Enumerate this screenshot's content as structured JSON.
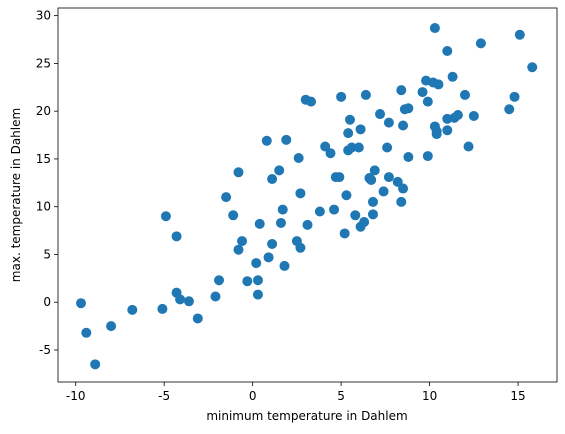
{
  "chart_data": {
    "type": "scatter",
    "xlabel": "minimum temperature in Dahlem",
    "ylabel": "max. temperature in Dahlem",
    "color": "#1f77b4",
    "xlim": [
      -11.0,
      17.2
    ],
    "ylim": [
      -8.35,
      30.8
    ],
    "xticks": [
      -10,
      -5,
      0,
      5,
      10,
      15
    ],
    "yticks": [
      -5,
      0,
      5,
      10,
      15,
      20,
      25,
      30
    ],
    "x": [
      -9.7,
      -9.4,
      -8.9,
      -8.0,
      -6.8,
      -5.1,
      -4.9,
      -4.3,
      -4.3,
      -4.1,
      -3.6,
      -3.1,
      -2.1,
      -1.9,
      -1.5,
      -1.1,
      -0.8,
      -0.8,
      -0.6,
      -0.3,
      0.2,
      0.3,
      0.3,
      0.4,
      0.8,
      0.9,
      1.1,
      1.1,
      1.5,
      1.6,
      1.7,
      1.8,
      1.9,
      2.5,
      2.6,
      2.7,
      2.7,
      3.0,
      3.3,
      3.1,
      3.8,
      4.1,
      4.4,
      4.6,
      4.7,
      4.9,
      5.0,
      5.2,
      5.3,
      5.4,
      5.4,
      5.5,
      5.6,
      5.8,
      6.0,
      6.1,
      6.1,
      6.3,
      6.4,
      6.6,
      6.7,
      6.8,
      6.9,
      6.8,
      7.2,
      7.4,
      7.6,
      7.7,
      7.7,
      8.2,
      8.4,
      8.4,
      8.5,
      8.5,
      8.6,
      8.8,
      8.8,
      9.6,
      9.8,
      9.9,
      9.9,
      10.2,
      10.3,
      10.3,
      10.4,
      10.4,
      10.5,
      11.0,
      11.0,
      11.0,
      11.3,
      11.4,
      11.6,
      12.0,
      12.2,
      12.5,
      12.9,
      14.5,
      14.8,
      15.1,
      15.8
    ],
    "values": [
      -0.1,
      -3.2,
      -6.5,
      -2.5,
      -0.8,
      -0.7,
      9.0,
      6.9,
      1.0,
      0.3,
      0.1,
      -1.7,
      0.6,
      2.3,
      11.0,
      9.1,
      13.6,
      5.5,
      6.4,
      2.2,
      4.1,
      2.3,
      0.8,
      8.2,
      16.9,
      4.7,
      12.9,
      6.1,
      13.8,
      8.3,
      9.7,
      3.8,
      17.0,
      6.4,
      15.1,
      11.4,
      5.7,
      21.2,
      21.0,
      8.1,
      9.5,
      16.3,
      15.6,
      9.7,
      13.1,
      13.1,
      21.5,
      7.2,
      11.2,
      17.7,
      15.9,
      19.1,
      16.2,
      9.1,
      16.2,
      7.9,
      18.1,
      8.4,
      21.7,
      13.0,
      12.8,
      9.2,
      13.8,
      10.5,
      19.7,
      11.6,
      16.2,
      18.8,
      13.1,
      12.6,
      22.2,
      10.5,
      11.9,
      18.5,
      20.2,
      20.3,
      15.2,
      22.0,
      23.2,
      21.0,
      15.3,
      23.0,
      28.7,
      18.4,
      17.6,
      17.9,
      22.8,
      26.3,
      19.2,
      18.0,
      23.6,
      19.3,
      19.6,
      21.7,
      16.3,
      19.5,
      27.1,
      20.2,
      21.5,
      28.0,
      24.6
    ]
  }
}
